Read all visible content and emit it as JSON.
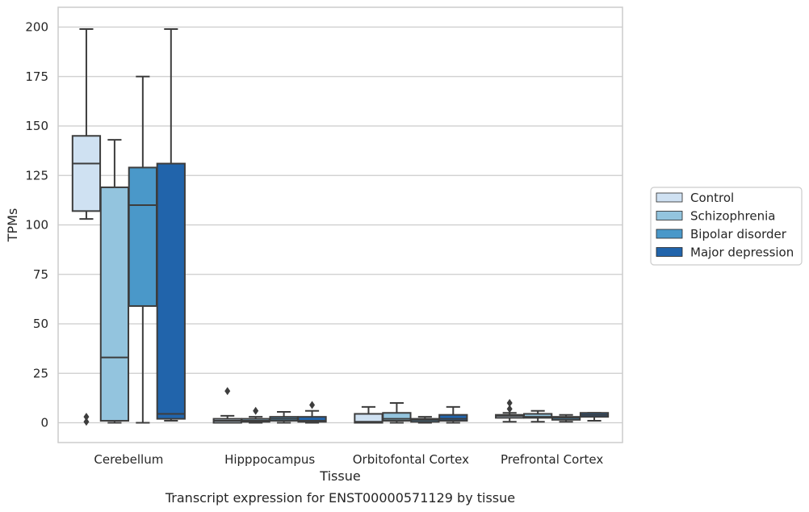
{
  "chart_data": {
    "type": "box",
    "caption": "Transcript expression for ENST00000571129 by tissue",
    "xlabel": "Tissue",
    "ylabel": "TPMs",
    "ylim": [
      -10,
      210
    ],
    "yticks": [
      0,
      25,
      50,
      75,
      100,
      125,
      150,
      175,
      200
    ],
    "grid": "horizontal",
    "legend_position": "right",
    "categories": [
      "Cerebellum",
      "Hipppocampus",
      "Orbitofontal Cortex",
      "Prefrontal Cortex"
    ],
    "series": [
      {
        "name": "Control",
        "color": "#cfe1f2",
        "boxes": [
          {
            "whislo": 103,
            "q1": 107,
            "med": 131,
            "q3": 145,
            "whishi": 199,
            "fliers": [
              0.5,
              3
            ]
          },
          {
            "whislo": 0,
            "q1": 0,
            "med": 1,
            "q3": 2,
            "whishi": 3.5,
            "fliers": [
              16
            ]
          },
          {
            "whislo": 0,
            "q1": 0,
            "med": 0.5,
            "q3": 4.5,
            "whishi": 8,
            "fliers": []
          },
          {
            "whislo": 0.5,
            "q1": 2.5,
            "med": 3.5,
            "q3": 4,
            "whishi": 5,
            "fliers": [
              7,
              10
            ]
          }
        ]
      },
      {
        "name": "Schizophrenia",
        "color": "#93c4de",
        "boxes": [
          {
            "whislo": 0,
            "q1": 1,
            "med": 33,
            "q3": 119,
            "whishi": 143,
            "fliers": []
          },
          {
            "whislo": 0,
            "q1": 0.5,
            "med": 1,
            "q3": 2,
            "whishi": 3,
            "fliers": [
              6
            ]
          },
          {
            "whislo": 0,
            "q1": 1,
            "med": 2,
            "q3": 5,
            "whishi": 10,
            "fliers": []
          },
          {
            "whislo": 0.5,
            "q1": 2.5,
            "med": 3,
            "q3": 4.5,
            "whishi": 6,
            "fliers": []
          }
        ]
      },
      {
        "name": "Bipolar disorder",
        "color": "#4a98c9",
        "boxes": [
          {
            "whislo": 0,
            "q1": 59,
            "med": 110,
            "q3": 129,
            "whishi": 175,
            "fliers": []
          },
          {
            "whislo": 0,
            "q1": 1,
            "med": 2,
            "q3": 3,
            "whishi": 5.5,
            "fliers": []
          },
          {
            "whislo": 0,
            "q1": 0.5,
            "med": 1.5,
            "q3": 2,
            "whishi": 3,
            "fliers": []
          },
          {
            "whislo": 0.5,
            "q1": 1.5,
            "med": 2.5,
            "q3": 3,
            "whishi": 4,
            "fliers": []
          }
        ]
      },
      {
        "name": "Major depression",
        "color": "#2164ab",
        "boxes": [
          {
            "whislo": 1,
            "q1": 2,
            "med": 4.5,
            "q3": 131,
            "whishi": 199,
            "fliers": []
          },
          {
            "whislo": 0,
            "q1": 0.5,
            "med": 1,
            "q3": 3,
            "whishi": 6,
            "fliers": [
              9
            ]
          },
          {
            "whislo": 0,
            "q1": 1,
            "med": 2,
            "q3": 4,
            "whishi": 8,
            "fliers": []
          },
          {
            "whislo": 1,
            "q1": 3,
            "med": 4,
            "q3": 5,
            "whishi": 5,
            "fliers": []
          }
        ]
      }
    ]
  }
}
